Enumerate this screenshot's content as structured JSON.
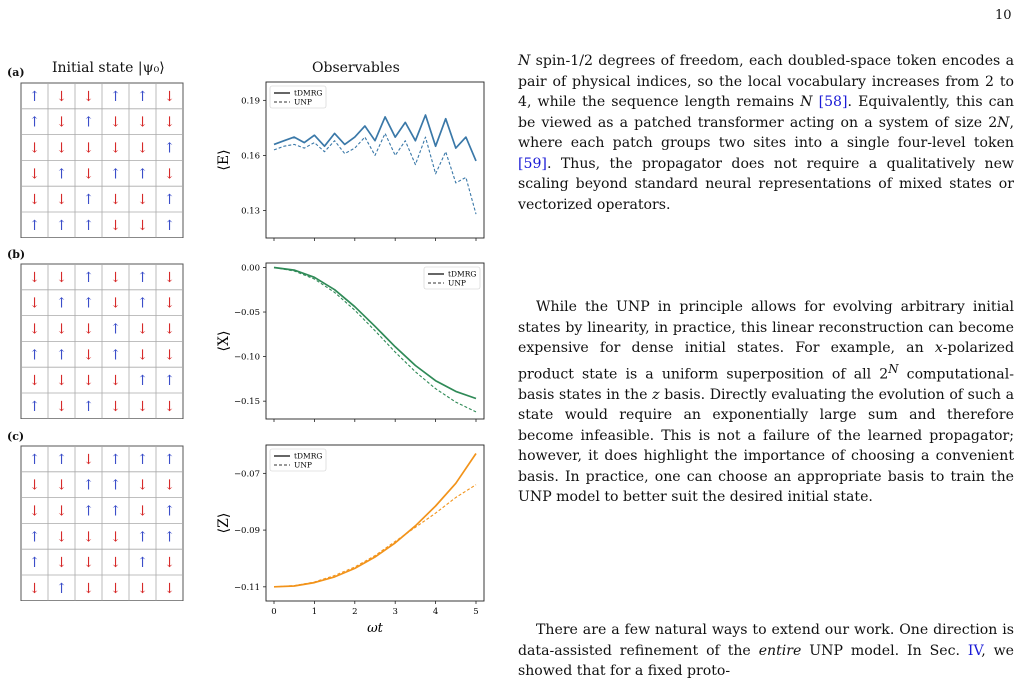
{
  "page_number": "10",
  "figure": {
    "panel_labels": [
      "(a)",
      "(b)",
      "(c)"
    ],
    "left_title": "Initial state |ψ₀⟩",
    "right_title": "Observables",
    "xlabel": "ωt",
    "spin_up": "↑",
    "spin_down": "↓",
    "spin_grids": [
      [
        [
          1,
          0,
          0,
          1,
          1,
          0
        ],
        [
          1,
          0,
          1,
          0,
          0,
          0
        ],
        [
          0,
          0,
          0,
          0,
          0,
          1
        ],
        [
          0,
          1,
          0,
          1,
          1,
          0
        ],
        [
          0,
          0,
          1,
          0,
          0,
          1
        ],
        [
          1,
          1,
          1,
          0,
          0,
          1
        ]
      ],
      [
        [
          0,
          0,
          1,
          0,
          1,
          0
        ],
        [
          0,
          1,
          1,
          0,
          1,
          0
        ],
        [
          0,
          0,
          0,
          1,
          0,
          0
        ],
        [
          1,
          1,
          0,
          1,
          0,
          0
        ],
        [
          0,
          0,
          0,
          0,
          1,
          1
        ],
        [
          1,
          0,
          1,
          0,
          0,
          0
        ]
      ],
      [
        [
          1,
          1,
          0,
          1,
          1,
          1
        ],
        [
          0,
          0,
          1,
          1,
          0,
          0
        ],
        [
          0,
          0,
          1,
          1,
          0,
          1
        ],
        [
          1,
          0,
          0,
          0,
          1,
          1
        ],
        [
          1,
          0,
          0,
          0,
          1,
          0
        ],
        [
          0,
          1,
          0,
          0,
          0,
          0
        ]
      ]
    ],
    "colors": {
      "up": "#3b4ec9",
      "down": "#d62a2a",
      "E": "#3a78a8",
      "X": "#2f8a57",
      "Z": "#f2931a"
    }
  },
  "chart_data": [
    {
      "type": "line",
      "ylabel": "⟨E⟩",
      "xlim": [
        0,
        5
      ],
      "ylim": [
        0.115,
        0.2
      ],
      "yticks": [
        0.13,
        0.16,
        0.19
      ],
      "ytick_labels": [
        "0.13",
        "0.16",
        "0.19"
      ],
      "legend": "top-left",
      "series": [
        {
          "name": "tDMRG",
          "style": "solid",
          "x": [
            0,
            0.25,
            0.5,
            0.75,
            1,
            1.25,
            1.5,
            1.75,
            2,
            2.25,
            2.5,
            2.75,
            3,
            3.25,
            3.5,
            3.75,
            4,
            4.25,
            4.5,
            4.75,
            5
          ],
          "y": [
            0.166,
            0.168,
            0.17,
            0.167,
            0.171,
            0.165,
            0.172,
            0.166,
            0.17,
            0.176,
            0.168,
            0.181,
            0.17,
            0.178,
            0.168,
            0.182,
            0.165,
            0.18,
            0.164,
            0.17,
            0.157
          ]
        },
        {
          "name": "UNP",
          "style": "dashed",
          "x": [
            0,
            0.25,
            0.5,
            0.75,
            1,
            1.25,
            1.5,
            1.75,
            2,
            2.25,
            2.5,
            2.75,
            3,
            3.25,
            3.5,
            3.75,
            4,
            4.25,
            4.5,
            4.75,
            5
          ],
          "y": [
            0.163,
            0.165,
            0.166,
            0.164,
            0.167,
            0.162,
            0.168,
            0.161,
            0.164,
            0.17,
            0.16,
            0.172,
            0.16,
            0.168,
            0.155,
            0.17,
            0.15,
            0.162,
            0.145,
            0.148,
            0.128
          ]
        }
      ]
    },
    {
      "type": "line",
      "ylabel": "⟨X⟩",
      "xlim": [
        0,
        5
      ],
      "ylim": [
        -0.17,
        0.005
      ],
      "yticks": [
        0.0,
        -0.05,
        -0.1,
        -0.15
      ],
      "ytick_labels": [
        "0.00",
        "−0.05",
        "−0.10",
        "−0.15"
      ],
      "legend": "top-right",
      "series": [
        {
          "name": "tDMRG",
          "style": "solid",
          "x": [
            0,
            0.5,
            1,
            1.5,
            2,
            2.5,
            3,
            3.5,
            4,
            4.5,
            5
          ],
          "y": [
            0.0,
            -0.003,
            -0.011,
            -0.025,
            -0.044,
            -0.066,
            -0.089,
            -0.11,
            -0.127,
            -0.139,
            -0.147
          ]
        },
        {
          "name": "UNP",
          "style": "dashed",
          "x": [
            0,
            0.5,
            1,
            1.5,
            2,
            2.5,
            3,
            3.5,
            4,
            4.5,
            5
          ],
          "y": [
            0.0,
            -0.004,
            -0.013,
            -0.028,
            -0.048,
            -0.071,
            -0.095,
            -0.117,
            -0.136,
            -0.151,
            -0.162
          ]
        }
      ]
    },
    {
      "type": "line",
      "ylabel": "⟨Z⟩",
      "xlim": [
        0,
        5
      ],
      "ylim": [
        -0.115,
        -0.06
      ],
      "yticks": [
        -0.07,
        -0.09,
        -0.11
      ],
      "ytick_labels": [
        "−0.07",
        "−0.09",
        "−0.11"
      ],
      "legend": "top-left",
      "series": [
        {
          "name": "tDMRG",
          "style": "solid",
          "x": [
            0,
            0.5,
            1,
            1.5,
            2,
            2.5,
            3,
            3.5,
            4,
            4.5,
            5
          ],
          "y": [
            -0.11,
            -0.1097,
            -0.1085,
            -0.1065,
            -0.1035,
            -0.0995,
            -0.0945,
            -0.0885,
            -0.0815,
            -0.0735,
            -0.063
          ]
        },
        {
          "name": "UNP",
          "style": "dashed",
          "x": [
            0,
            0.5,
            1,
            1.5,
            2,
            2.5,
            3,
            3.5,
            4,
            4.5,
            5
          ],
          "y": [
            -0.11,
            -0.1096,
            -0.1083,
            -0.106,
            -0.103,
            -0.099,
            -0.094,
            -0.089,
            -0.084,
            -0.0785,
            -0.074
          ]
        }
      ]
    }
  ],
  "xaxis_ticks": [
    "0",
    "1",
    "2",
    "3",
    "4",
    "5"
  ],
  "text": {
    "p1": [
      {
        "t": "N",
        "i": true
      },
      {
        "t": " spin-1/2 degrees of freedom, each doubled-space token encodes a pair of physical indices, so the local vocabulary increases from 2 to 4, while the sequence length remains "
      },
      {
        "t": "N",
        "i": true
      },
      {
        "t": " "
      },
      {
        "t": "[58]",
        "r": true
      },
      {
        "t": ". Equivalently, this can be viewed as a patched transformer acting on a system of size 2"
      },
      {
        "t": "N",
        "i": true
      },
      {
        "t": ", where each patch groups two sites into a single four-level token "
      },
      {
        "t": "[59]",
        "r": true
      },
      {
        "t": ". Thus, the propagator does not require a qualitatively new scaling beyond standard neural representations of mixed states or vectorized operators."
      }
    ],
    "p2": [
      {
        "t": "While the UNP in principle allows for evolving arbitrary initial states by linearity, in practice, this linear reconstruction can become expensive for dense initial states. For example, an "
      },
      {
        "t": "x",
        "i": true
      },
      {
        "t": "-polarized product state is a uniform superposition of all 2"
      },
      {
        "t": "N",
        "i": true,
        "sup": true
      },
      {
        "t": " computational-basis states in the "
      },
      {
        "t": "z",
        "i": true
      },
      {
        "t": " basis. Directly evaluating the evolution of such a state would require an exponentially large sum and therefore become infeasible. This is not a failure of the learned propagator; however, it does highlight the importance of choosing a convenient basis. In practice, one can choose an appropriate basis to train the UNP model to better suit the desired initial state."
      }
    ],
    "p3": [
      {
        "t": "There are a few natural ways to extend our work. One direction is data-assisted refinement of the "
      },
      {
        "t": "entire",
        "i": true
      },
      {
        "t": " UNP model. In Sec. "
      },
      {
        "t": "IV",
        "r": true
      },
      {
        "t": ", we showed that for a fixed proto-"
      }
    ]
  }
}
